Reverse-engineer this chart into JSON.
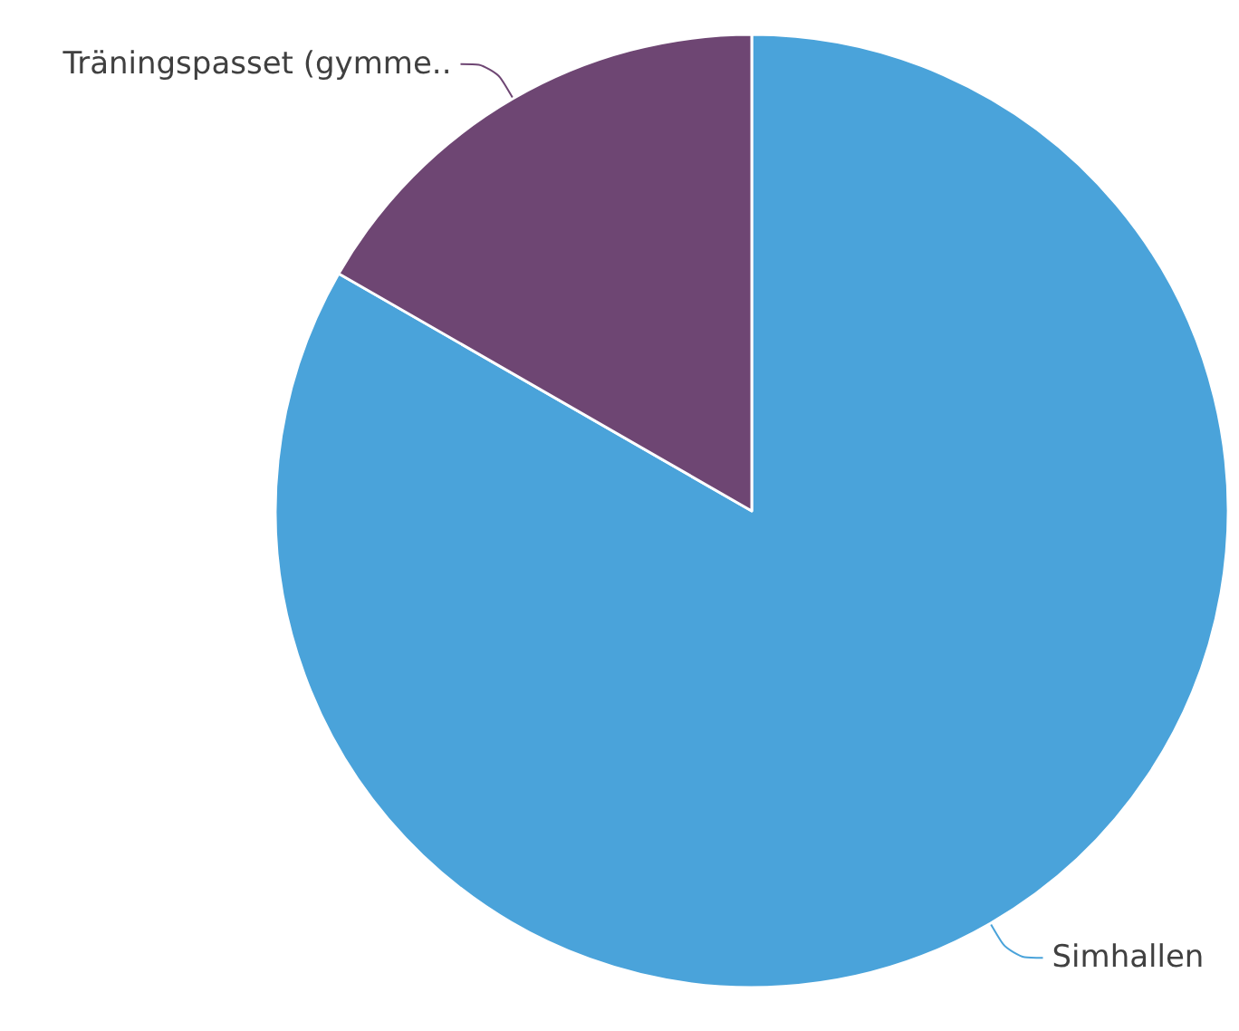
{
  "chart_data": {
    "type": "pie",
    "categories": [
      "Simhallen",
      "Träningspasset (gymme.."
    ],
    "values": [
      83.3,
      16.7
    ],
    "colors": [
      "#4aa3da",
      "#6e4673"
    ],
    "legend": false
  }
}
